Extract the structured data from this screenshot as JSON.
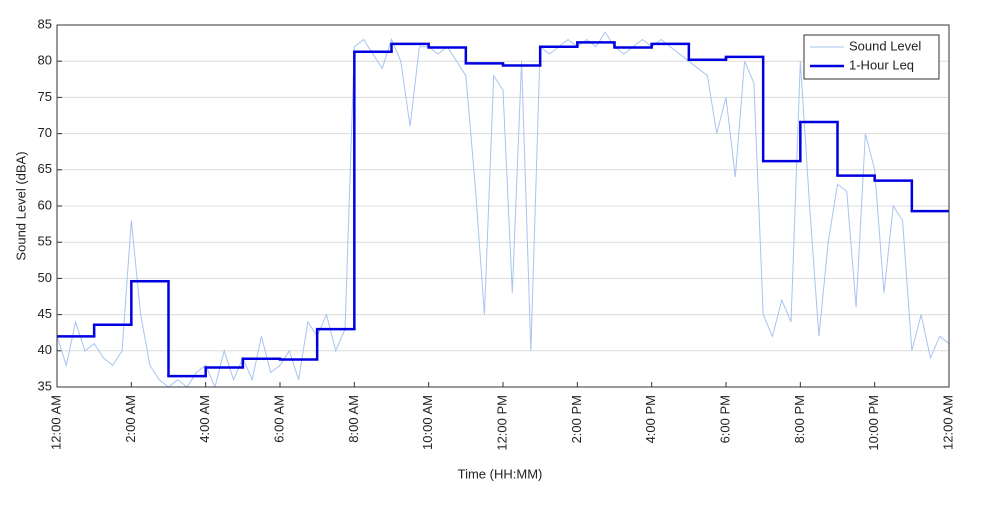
{
  "chart_data": {
    "type": "line",
    "xlabel": "Time (HH:MM)",
    "ylabel": "Sound Level (dBA)",
    "xlim": [
      0,
      24
    ],
    "ylim": [
      35,
      85
    ],
    "yticks": [
      35,
      40,
      45,
      50,
      55,
      60,
      65,
      70,
      75,
      80,
      85
    ],
    "xticks": [
      {
        "value": 0,
        "label": "12:00 AM"
      },
      {
        "value": 2,
        "label": "2:00 AM"
      },
      {
        "value": 4,
        "label": "4:00 AM"
      },
      {
        "value": 6,
        "label": "6:00 AM"
      },
      {
        "value": 8,
        "label": "8:00 AM"
      },
      {
        "value": 10,
        "label": "10:00 AM"
      },
      {
        "value": 12,
        "label": "12:00 PM"
      },
      {
        "value": 14,
        "label": "2:00 PM"
      },
      {
        "value": 16,
        "label": "4:00 PM"
      },
      {
        "value": 18,
        "label": "6:00 PM"
      },
      {
        "value": 20,
        "label": "8:00 PM"
      },
      {
        "value": 22,
        "label": "10:00 PM"
      },
      {
        "value": 24,
        "label": "12:00 AM"
      }
    ],
    "grid": true,
    "legend": "northeast",
    "series": [
      {
        "name": "Sound Level",
        "color": "#a8c4f0",
        "style": "line",
        "x": [
          0,
          0.25,
          0.5,
          0.75,
          1,
          1.25,
          1.5,
          1.75,
          2,
          2.25,
          2.5,
          2.75,
          3,
          3.25,
          3.5,
          3.75,
          4,
          4.25,
          4.5,
          4.75,
          5,
          5.25,
          5.5,
          5.75,
          6,
          6.25,
          6.5,
          6.75,
          7,
          7.25,
          7.5,
          7.75,
          8,
          8.25,
          8.5,
          8.75,
          9,
          9.25,
          9.5,
          9.75,
          10,
          10.25,
          10.5,
          10.75,
          11,
          11.25,
          11.5,
          11.75,
          12,
          12.25,
          12.5,
          12.75,
          13,
          13.25,
          13.5,
          13.75,
          14,
          14.25,
          14.5,
          14.75,
          15,
          15.25,
          15.5,
          15.75,
          16,
          16.25,
          16.5,
          16.75,
          17,
          17.25,
          17.5,
          17.75,
          18,
          18.25,
          18.5,
          18.75,
          19,
          19.25,
          19.5,
          19.75,
          20,
          20.25,
          20.5,
          20.75,
          21,
          21.25,
          21.5,
          21.75,
          22,
          22.25,
          22.5,
          22.75,
          23,
          23.25,
          23.5,
          23.75,
          24
        ],
        "values": [
          42,
          38,
          44,
          40,
          41,
          39,
          38,
          40,
          58,
          45,
          38,
          36,
          35,
          36,
          35,
          37,
          38,
          35,
          40,
          36,
          39,
          36,
          42,
          37,
          38,
          40,
          36,
          44,
          42,
          45,
          40,
          43,
          82,
          83,
          81,
          79,
          83,
          80,
          71,
          82,
          82,
          81,
          82,
          80,
          78,
          63,
          45,
          78,
          76,
          48,
          80,
          40,
          82,
          81,
          82,
          83,
          82,
          83,
          82,
          84,
          82,
          81,
          82,
          83,
          82,
          83,
          82,
          81,
          80,
          79,
          78,
          70,
          75,
          64,
          80,
          77,
          45,
          42,
          47,
          44,
          80,
          60,
          42,
          55,
          63,
          62,
          46,
          70,
          65,
          48,
          60,
          58,
          40,
          45,
          39,
          42,
          41
        ]
      },
      {
        "name": "1-Hour Leq",
        "color": "#0000e0",
        "style": "step",
        "x": [
          0,
          1,
          2,
          3,
          4,
          5,
          6,
          7,
          8,
          9,
          10,
          11,
          12,
          13,
          14,
          15,
          16,
          17,
          18,
          19,
          20,
          21,
          22,
          23
        ],
        "values": [
          42,
          43.6,
          49.6,
          36.5,
          37.7,
          38.9,
          38.8,
          43,
          81.3,
          82.4,
          81.9,
          79.7,
          79.4,
          82,
          82.6,
          81.9,
          82.4,
          80.2,
          80.6,
          66.2,
          71.6,
          64.2,
          63.5,
          59.3
        ]
      }
    ]
  }
}
